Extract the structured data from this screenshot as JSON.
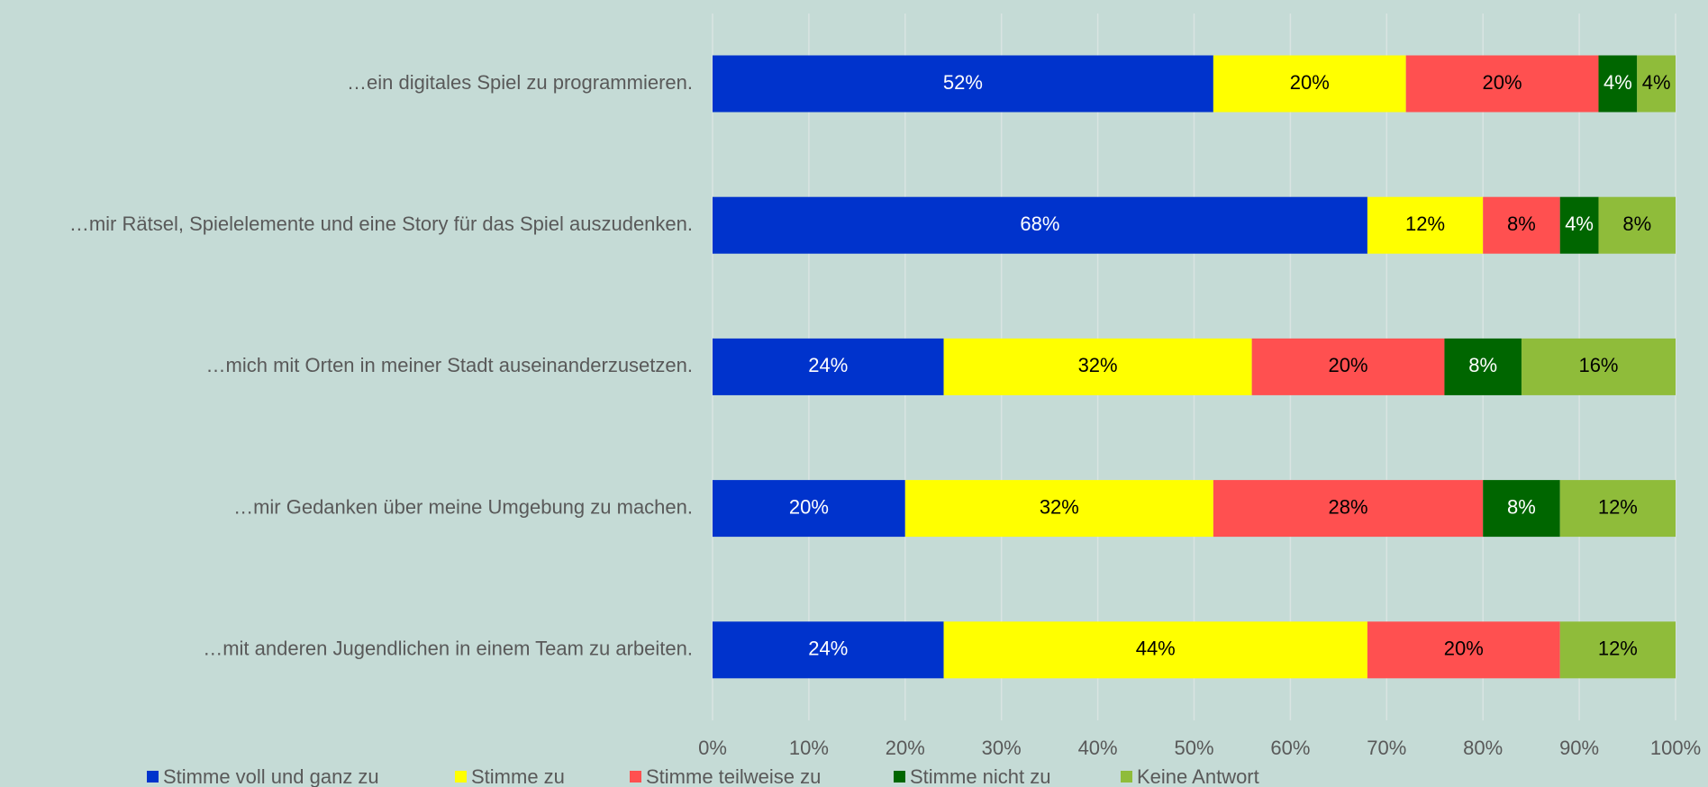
{
  "chart_data": {
    "type": "stacked_barh",
    "categories": [
      "…ein digitales Spiel zu programmieren.",
      "…mir Rätsel, Spielelemente und eine Story für das Spiel auszudenken.",
      "…mich mit Orten in meiner Stadt auseinanderzusetzen.",
      "…mir Gedanken über meine Umgebung zu machen.",
      "…mit anderen Jugendlichen in einem Team zu arbeiten."
    ],
    "series": [
      {
        "name": "Stimme voll und ganz zu",
        "color": "#0033cc",
        "values": [
          52,
          68,
          24,
          20,
          24
        ],
        "value_labels": [
          "52%",
          "68%",
          "24%",
          "20%",
          "24%"
        ]
      },
      {
        "name": "Stimme zu",
        "color": "#ffff00",
        "values": [
          20,
          12,
          32,
          32,
          44
        ],
        "value_labels": [
          "20%",
          "12%",
          "32%",
          "32%",
          "44%"
        ]
      },
      {
        "name": "Stimme teilweise zu",
        "color": "#ff5050",
        "values": [
          20,
          8,
          20,
          28,
          20
        ],
        "value_labels": [
          "20%",
          "8%",
          "20%",
          "28%",
          "20%"
        ]
      },
      {
        "name": "Stimme nicht zu",
        "color": "#006600",
        "values": [
          4,
          4,
          8,
          8,
          0
        ],
        "value_labels": [
          "4%",
          "4%",
          "8%",
          "8%",
          null
        ]
      },
      {
        "name": "Keine Antwort",
        "color": "#8fbc3a",
        "values": [
          4,
          8,
          16,
          12,
          12
        ],
        "value_labels": [
          "4%",
          "8%",
          "16%",
          "12%",
          "12%"
        ]
      }
    ],
    "xlim": [
      0,
      100
    ],
    "xticks": [
      {
        "value": 0,
        "label": "0%"
      },
      {
        "value": 10,
        "label": "10%"
      },
      {
        "value": 20,
        "label": "20%"
      },
      {
        "value": 30,
        "label": "30%"
      },
      {
        "value": 40,
        "label": "40%"
      },
      {
        "value": 50,
        "label": "50%"
      },
      {
        "value": 60,
        "label": "60%"
      },
      {
        "value": 70,
        "label": "70%"
      },
      {
        "value": 80,
        "label": "80%"
      },
      {
        "value": 90,
        "label": "90%"
      },
      {
        "value": 100,
        "label": "100%"
      }
    ],
    "grid": true,
    "legend": "bottom"
  }
}
